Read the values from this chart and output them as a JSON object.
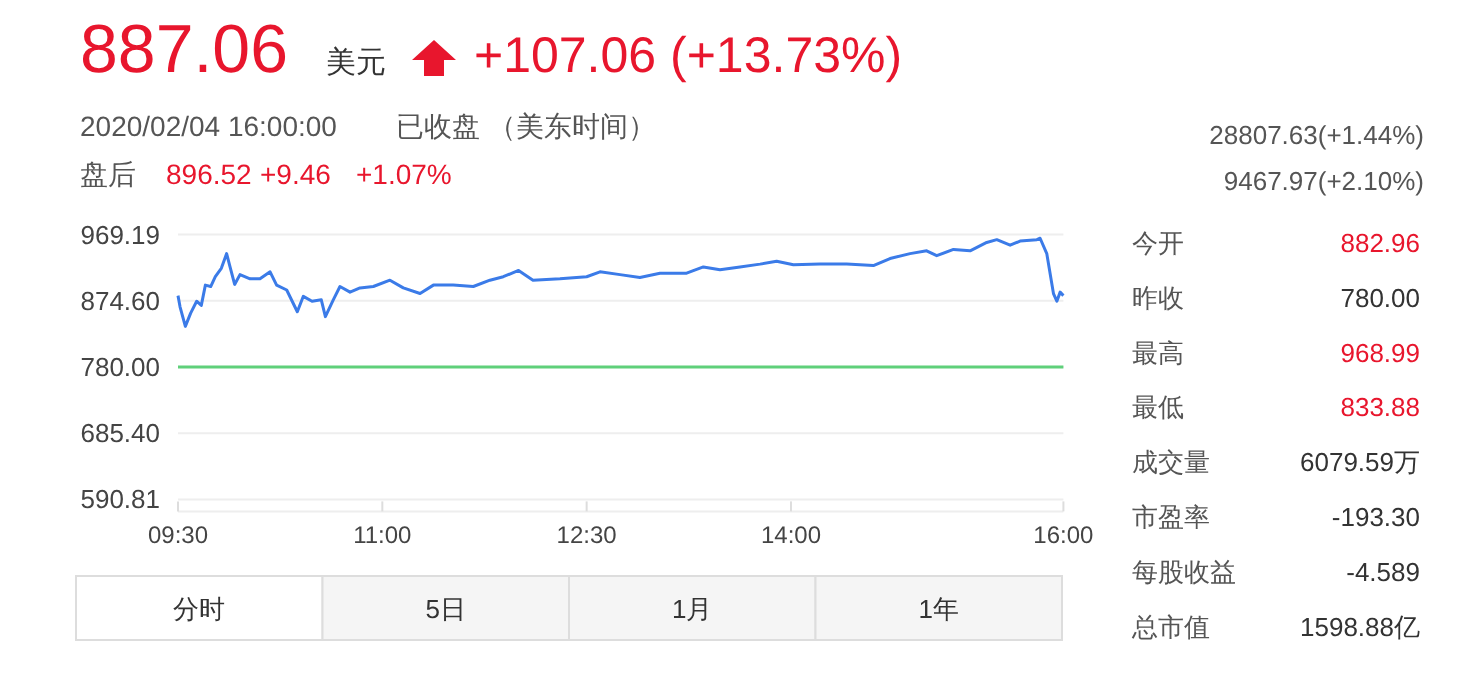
{
  "chart_data": {
    "type": "line",
    "x": [
      9.5,
      9.515,
      9.554,
      9.593,
      9.637,
      9.671,
      9.701,
      9.74,
      9.774,
      9.818,
      9.857,
      9.882,
      9.916,
      9.955,
      10.029,
      10.102,
      10.176,
      10.224,
      10.298,
      10.376,
      10.42,
      10.484,
      10.552,
      10.582,
      10.64,
      10.689,
      10.763,
      10.836,
      10.934,
      11.056,
      11.154,
      11.277,
      11.375,
      11.52,
      11.668,
      11.79,
      11.888,
      12.0,
      12.106,
      12.304,
      12.5,
      12.598,
      12.745,
      12.891,
      13.038,
      13.234,
      13.357,
      13.479,
      13.626,
      13.773,
      13.895,
      14.018,
      14.213,
      14.409,
      14.605,
      14.727,
      14.874,
      14.996,
      15.07,
      15.193,
      15.315,
      15.437,
      15.511,
      15.609,
      15.682,
      15.805,
      15.829,
      15.878,
      15.927,
      15.952,
      15.976,
      16.0
    ],
    "series": [
      {
        "color": "#3b7be8",
        "values": [
          882,
          866,
          838,
          857,
          874,
          868,
          897,
          895,
          909,
          921,
          942,
          923,
          898,
          912,
          906,
          906,
          916,
          897,
          890,
          859,
          881,
          874,
          876,
          852,
          876,
          895,
          887,
          893,
          895,
          904,
          893,
          885,
          897,
          897,
          895,
          904,
          909,
          918,
          904,
          906,
          909,
          916,
          912,
          908,
          914,
          914,
          923,
          919,
          923,
          927,
          931,
          926,
          927,
          927,
          925,
          935,
          942,
          946,
          939,
          948,
          946,
          958,
          962,
          954,
          960,
          962,
          964,
          942,
          885,
          874,
          887,
          882
        ]
      }
    ],
    "xlim": [
      9.5,
      16.0
    ],
    "xticks": [
      {
        "value": 9.5,
        "label": "09:30"
      },
      {
        "value": 11,
        "label": "11:00"
      },
      {
        "value": 12.5,
        "label": "12:30"
      },
      {
        "value": 14,
        "label": "14:00"
      },
      {
        "value": 16,
        "label": "16:00"
      }
    ],
    "ylim": [
      590.81,
      969.19
    ],
    "yticks": [
      590.81,
      {
        "value": 685.4,
        "label": "685.40"
      },
      {
        "value": 780,
        "label": "780.00"
      },
      {
        "value": 874.6,
        "label": "874.60"
      },
      969.19
    ],
    "grid": "y",
    "ref_lines": [
      {
        "axis": "y",
        "value": 780.0,
        "color": "#5fd07a"
      }
    ],
    "annotations": [
      "887.06",
      "美元",
      "+107.06 (+13.73%)",
      "2020/02/04 16:00:00",
      "已收盘",
      "（美东时间）",
      "盘后",
      "896.52",
      "+9.46",
      "+1.07%",
      "28807.63(+1.44%)",
      "9467.97(+2.10%)",
      "今开",
      "882.96",
      "昨收",
      "780.00",
      "最高",
      "968.99",
      "最低",
      "833.88",
      "成交量",
      "6079.59万",
      "市盈率",
      "-193.30",
      "每股收益",
      "-4.589",
      "总市值",
      "1598.88亿",
      "分时",
      "5日",
      "1月",
      "1年"
    ]
  }
}
